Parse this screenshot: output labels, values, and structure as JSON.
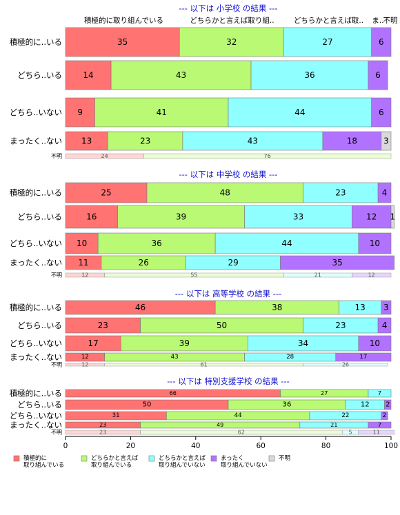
{
  "chart_data": {
    "type": "bar",
    "orientation": "horizontal",
    "stacked": "percent",
    "xlim": [
      0,
      100
    ],
    "x_ticks": [
      "0",
      "20",
      "40",
      "60",
      "80",
      "100"
    ],
    "column_headers": [
      "積極的に取り組んでいる",
      "どちらかと言えば取り組..",
      "どちらかと言えば取..",
      "ま..",
      "不明"
    ],
    "series": [
      {
        "name": "積極的に 取り組んでいる",
        "legend_lines": [
          "積極的に",
          "取り組んでいる"
        ],
        "color": "#FF7373"
      },
      {
        "name": "どちらかと言えば 取り組んでいる",
        "legend_lines": [
          "どちらかと言えば",
          "取り組んでいる"
        ],
        "color": "#B9F973"
      },
      {
        "name": "どちらかと言えば 取り組んでいない",
        "legend_lines": [
          "どちらかと言えば",
          "取り組んでいない"
        ],
        "color": "#8FFFFF"
      },
      {
        "name": "まったく 取り組んでいない",
        "legend_lines": [
          "まったく",
          "取り組んでいない"
        ],
        "color": "#B173FF"
      },
      {
        "name": "不明",
        "legend_lines": [
          "不明"
        ],
        "color": "#D9D9D9"
      }
    ],
    "panels": [
      {
        "title": "--- 以下は 小学校 の結果 ---",
        "categories": [
          "積極的に..いる",
          "どちら..いる",
          "どちら..いない",
          "まったく..ない"
        ],
        "values": [
          [
            35,
            32,
            27,
            6,
            0
          ],
          [
            14,
            43,
            36,
            6,
            0
          ],
          [
            9,
            41,
            44,
            6,
            0
          ],
          [
            13,
            23,
            43,
            18,
            3
          ]
        ],
        "missing_label": "不明",
        "missing_values": [
          24,
          76
        ]
      },
      {
        "title": "--- 以下は 中学校 の結果 ---",
        "categories": [
          "積極的に..いる",
          "どちら..いる",
          "どちら..いない",
          "まったく..ない"
        ],
        "values": [
          [
            25,
            48,
            23,
            4,
            0
          ],
          [
            16,
            39,
            33,
            12,
            1
          ],
          [
            10,
            36,
            44,
            10,
            0
          ],
          [
            11,
            26,
            29,
            35,
            0
          ]
        ],
        "missing_label": "不明",
        "missing_values": [
          12,
          55,
          21,
          12
        ]
      },
      {
        "title": "--- 以下は 高等学校 の結果 ---",
        "categories": [
          "積極的に..いる",
          "どちら..いる",
          "どちら..いない",
          "まったく..ない"
        ],
        "values": [
          [
            46,
            38,
            13,
            3,
            0
          ],
          [
            23,
            50,
            23,
            4,
            0
          ],
          [
            17,
            39,
            34,
            10,
            0
          ],
          [
            12,
            43,
            28,
            17,
            0
          ]
        ],
        "missing_label": "不明",
        "missing_values": [
          12,
          61,
          26
        ]
      },
      {
        "title": "--- 以下は 特別支援学校 の結果 ---",
        "categories": [
          "積極的に..いる",
          "どちら..いる",
          "どちら..いない",
          "まったく..ない"
        ],
        "values": [
          [
            66,
            27,
            7,
            0,
            0
          ],
          [
            50,
            36,
            12,
            2,
            0
          ],
          [
            31,
            44,
            22,
            2,
            0
          ],
          [
            23,
            49,
            21,
            7,
            0
          ]
        ],
        "missing_label": "不明",
        "missing_values": [
          23,
          62,
          5,
          11
        ]
      }
    ]
  }
}
